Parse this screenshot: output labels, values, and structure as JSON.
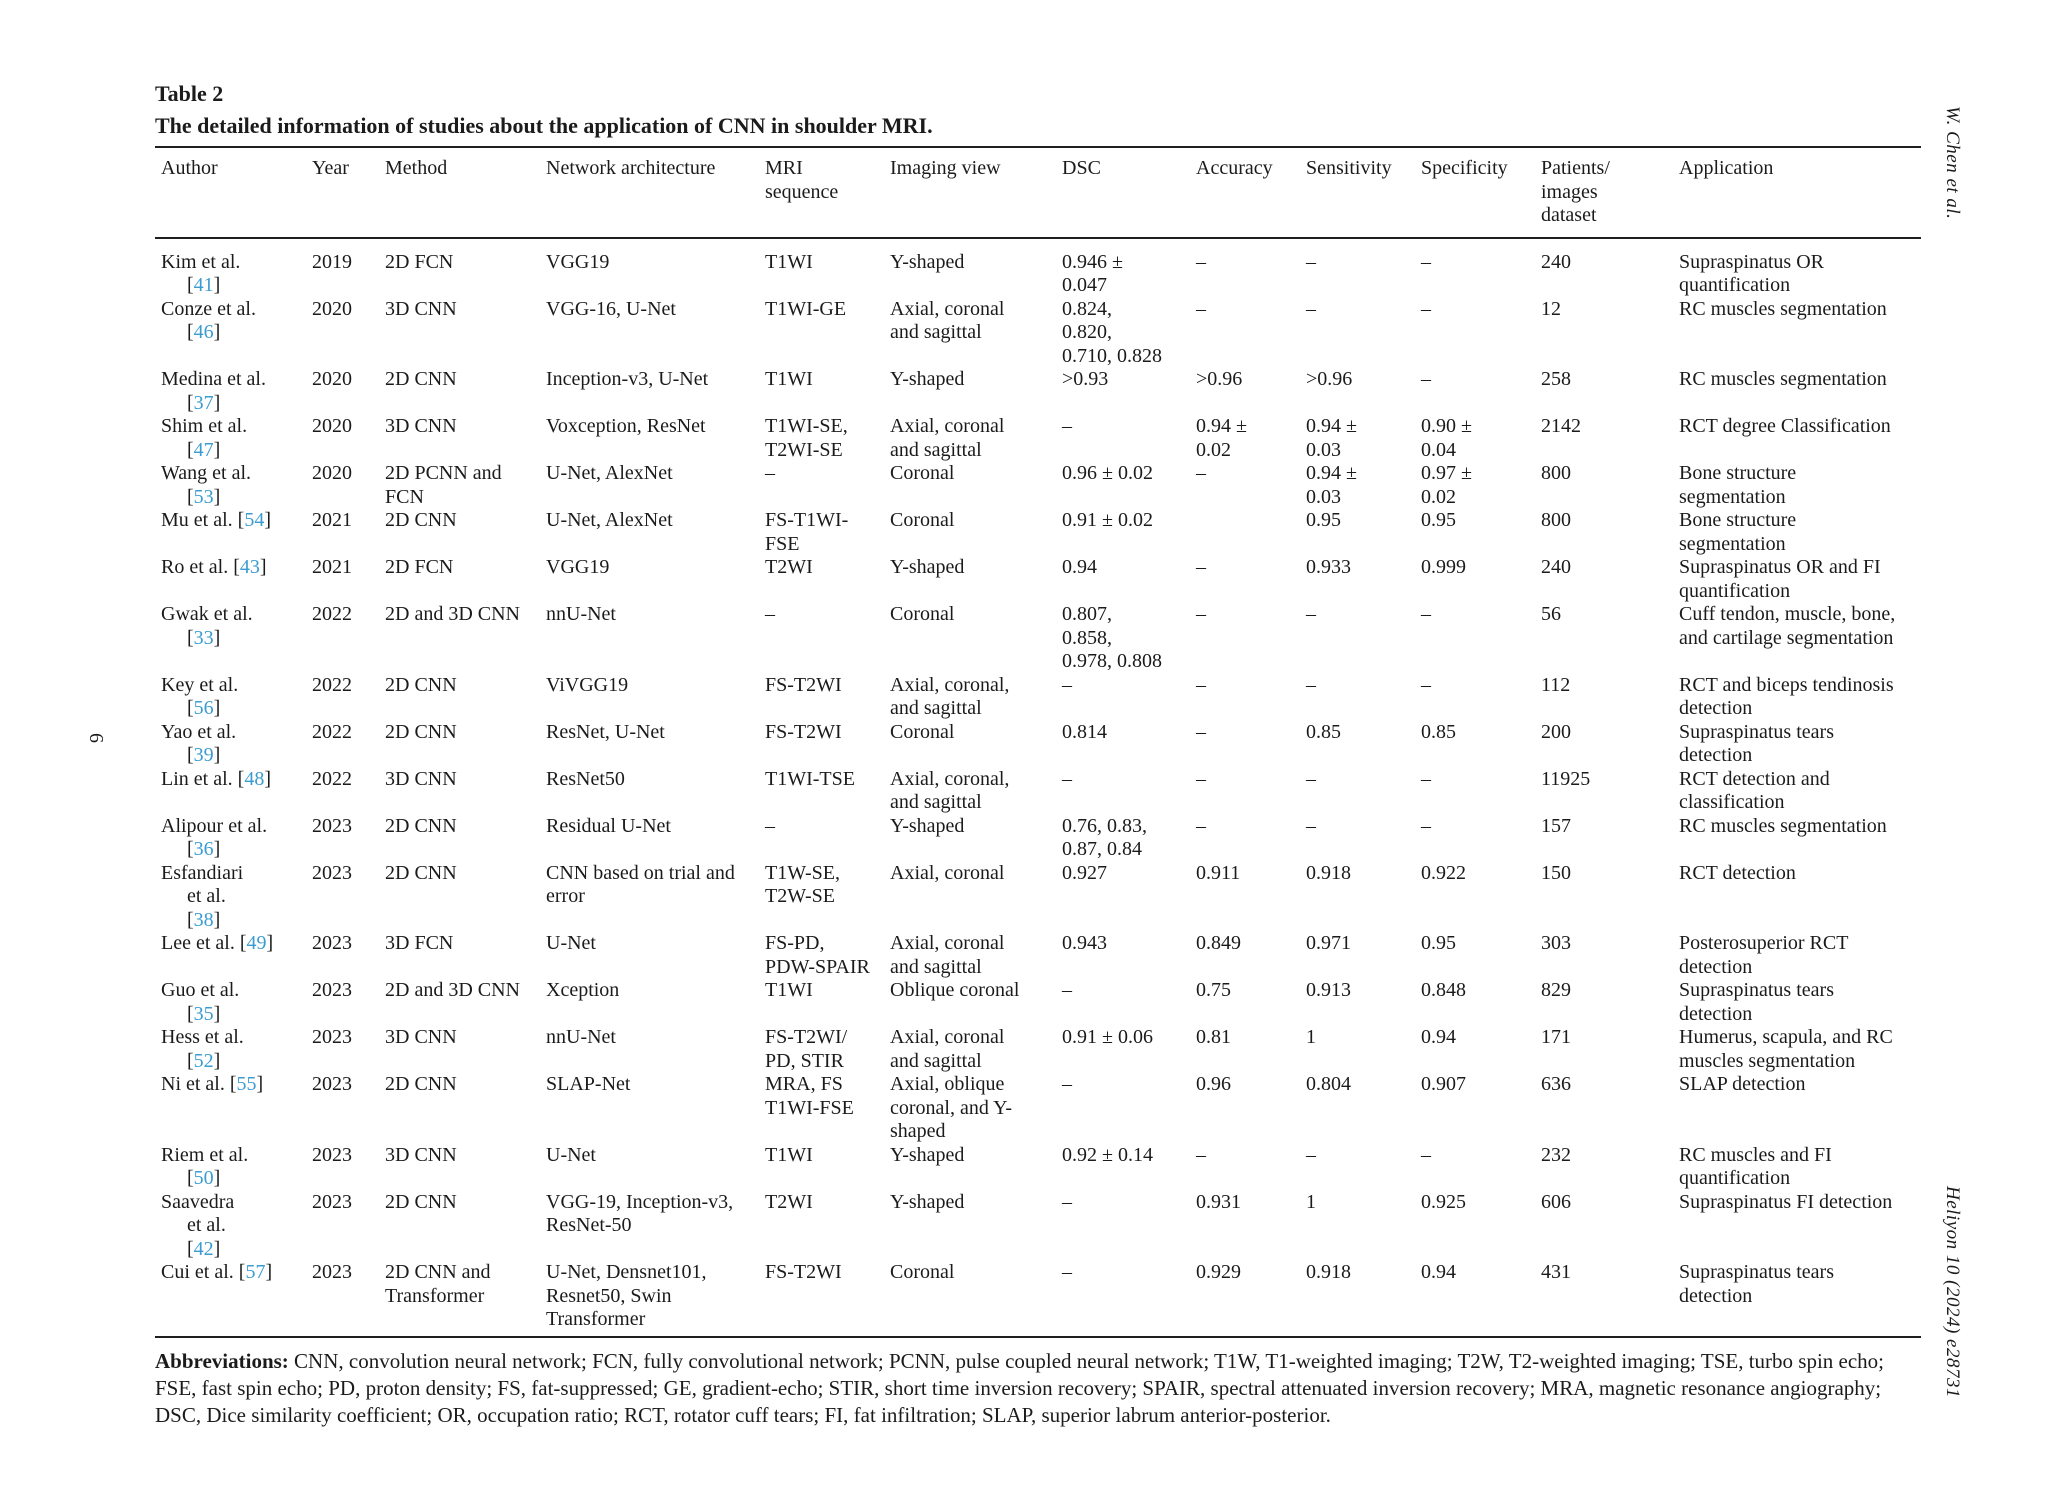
{
  "colors": {
    "citation": "#3b9cd1"
  },
  "page": {
    "side_left_page_number": "6",
    "side_right_top": "W. Chen et al.",
    "side_right_bottom": "Heliyon 10 (2024) e28731"
  },
  "table": {
    "label": "Table 2",
    "caption": "The detailed information of studies about the application of CNN in shoulder MRI.",
    "columns": [
      "Author",
      "Year",
      "Method",
      "Network architecture",
      "MRI\nsequence",
      "Imaging view",
      "DSC",
      "Accuracy",
      "Sensitivity",
      "Specificity",
      "Patients/\nimages\ndataset",
      "Application"
    ],
    "rows": [
      [
        "Kim et al.\n[41]",
        "2019",
        "2D FCN",
        "VGG19",
        "T1WI",
        "Y-shaped",
        "0.946 ±\n0.047",
        "–",
        "–",
        "–",
        "240",
        "Supraspinatus OR\nquantification"
      ],
      [
        "Conze et al.\n[46]",
        "2020",
        "3D CNN",
        "VGG-16, U-Net",
        "T1WI-GE",
        "Axial, coronal\nand sagittal",
        "0.824,\n0.820,\n0.710, 0.828",
        "–",
        "–",
        "–",
        "12",
        "RC muscles segmentation"
      ],
      [
        "Medina et al.\n[37]",
        "2020",
        "2D CNN",
        "Inception-v3, U-Net",
        "T1WI",
        "Y-shaped",
        ">0.93",
        ">0.96",
        ">0.96",
        "–",
        "258",
        "RC muscles segmentation"
      ],
      [
        "Shim et al.\n[47]",
        "2020",
        "3D CNN",
        "Voxception, ResNet",
        "T1WI-SE,\nT2WI-SE",
        "Axial, coronal\nand sagittal",
        "–",
        "0.94 ±\n0.02",
        "0.94 ±\n0.03",
        "0.90 ±\n0.04",
        "2142",
        "RCT degree Classification"
      ],
      [
        "Wang et al.\n[53]",
        "2020",
        "2D PCNN and\nFCN",
        "U-Net, AlexNet",
        "–",
        "Coronal",
        "0.96 ± 0.02",
        "–",
        "0.94 ±\n0.03",
        "0.97 ±\n0.02",
        "800",
        "Bone structure\nsegmentation"
      ],
      [
        "Mu et al. [54]",
        "2021",
        "2D CNN",
        "U-Net, AlexNet",
        "FS-T1WI-\nFSE",
        "Coronal",
        "0.91 ± 0.02",
        "",
        "0.95",
        "0.95",
        "800",
        "Bone structure\nsegmentation"
      ],
      [
        "Ro et al. [43]",
        "2021",
        "2D FCN",
        "VGG19",
        "T2WI",
        "Y-shaped",
        "0.94",
        "–",
        "0.933",
        "0.999",
        "240",
        "Supraspinatus OR and FI\nquantification"
      ],
      [
        "Gwak et al.\n[33]",
        "2022",
        "2D and 3D CNN",
        "nnU-Net",
        "–",
        "Coronal",
        "0.807,\n0.858,\n0.978, 0.808",
        "–",
        "–",
        "–",
        "56",
        "Cuff tendon, muscle, bone,\nand cartilage segmentation"
      ],
      [
        "Key et al.\n[56]",
        "2022",
        "2D CNN",
        "ViVGG19",
        "FS-T2WI",
        "Axial, coronal,\nand sagittal",
        "–",
        "–",
        "–",
        "–",
        "112",
        "RCT and biceps tendinosis\ndetection"
      ],
      [
        "Yao et al.\n[39]",
        "2022",
        "2D CNN",
        "ResNet, U-Net",
        "FS-T2WI",
        "Coronal",
        "0.814",
        "–",
        "0.85",
        "0.85",
        "200",
        "Supraspinatus tears\ndetection"
      ],
      [
        "Lin et al. [48]",
        "2022",
        "3D CNN",
        "ResNet50",
        "T1WI-TSE",
        "Axial, coronal,\nand sagittal",
        "–",
        "–",
        "–",
        "–",
        "11925",
        "RCT detection and\nclassification"
      ],
      [
        "Alipour et al.\n[36]",
        "2023",
        "2D CNN",
        "Residual U-Net",
        "–",
        "Y-shaped",
        "0.76, 0.83,\n0.87, 0.84",
        "–",
        "–",
        "–",
        "157",
        "RC muscles segmentation"
      ],
      [
        "Esfandiari\net al.\n[38]",
        "2023",
        "2D CNN",
        "CNN based on trial and\nerror",
        "T1W-SE,\nT2W-SE",
        "Axial, coronal",
        "0.927",
        "0.911",
        "0.918",
        "0.922",
        "150",
        "RCT detection"
      ],
      [
        "Lee et al. [49]",
        "2023",
        "3D FCN",
        "U-Net",
        "FS-PD,\nPDW-SPAIR",
        "Axial, coronal\nand sagittal",
        "0.943",
        "0.849",
        "0.971",
        "0.95",
        "303",
        "Posterosuperior RCT\ndetection"
      ],
      [
        "Guo et al.\n[35]",
        "2023",
        "2D and 3D CNN",
        "Xception",
        "T1WI",
        "Oblique coronal",
        "–",
        "0.75",
        "0.913",
        "0.848",
        "829",
        "Supraspinatus tears\ndetection"
      ],
      [
        "Hess et al.\n[52]",
        "2023",
        "3D CNN",
        "nnU-Net",
        "FS-T2WI/\nPD, STIR",
        "Axial, coronal\nand sagittal",
        "0.91 ± 0.06",
        "0.81",
        "1",
        "0.94",
        "171",
        "Humerus, scapula, and RC\nmuscles segmentation"
      ],
      [
        "Ni et al. [55]",
        "2023",
        "2D CNN",
        "SLAP-Net",
        "MRA, FS\nT1WI-FSE",
        "Axial, oblique\ncoronal, and Y-\nshaped",
        "–",
        "0.96",
        "0.804",
        "0.907",
        "636",
        "SLAP detection"
      ],
      [
        "Riem et al.\n[50]",
        "2023",
        "3D CNN",
        "U-Net",
        "T1WI",
        "Y-shaped",
        "0.92 ± 0.14",
        "–",
        "–",
        "–",
        "232",
        "RC muscles and FI\nquantification"
      ],
      [
        "Saavedra\net al.\n[42]",
        "2023",
        "2D CNN",
        "VGG-19, Inception-v3,\nResNet-50",
        "T2WI",
        "Y-shaped",
        "–",
        "0.931",
        "1",
        "0.925",
        "606",
        "Supraspinatus FI detection"
      ],
      [
        "Cui et al. [57]",
        "2023",
        "2D CNN and\nTransformer",
        "U-Net, Densnet101,\nResnet50, Swin\nTransformer",
        "FS-T2WI",
        "Coronal",
        "–",
        "0.929",
        "0.918",
        "0.94",
        "431",
        "Supraspinatus tears\ndetection"
      ]
    ]
  },
  "footnote": {
    "lead": "Abbreviations:",
    "lines": [
      "CNN, convolution neural network; FCN, fully convolutional network; PCNN, pulse coupled neural network; T1W, T1-weighted imaging; T2W, T2-weighted imaging; TSE, turbo spin echo;",
      "FSE, fast spin echo; PD, proton density; FS, fat-suppressed; GE, gradient-echo; STIR, short time inversion recovery; SPAIR, spectral attenuated inversion recovery; MRA, magnetic resonance angiography;",
      "DSC, Dice similarity coefficient; OR, occupation ratio; RCT, rotator cuff tears; FI, fat infiltration; SLAP, superior labrum anterior-posterior."
    ]
  }
}
